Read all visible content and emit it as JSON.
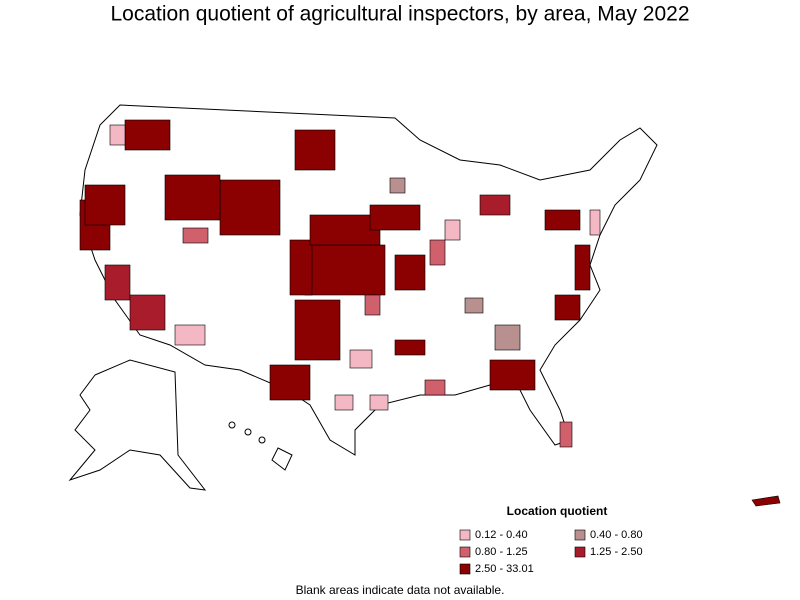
{
  "title": "Location quotient of agricultural inspectors, by area, May 2022",
  "legend": {
    "title": "Location quotient",
    "items": [
      {
        "label": "0.12 - 0.40",
        "color": "#f4b8c4"
      },
      {
        "label": "0.40 - 0.80",
        "color": "#b89090"
      },
      {
        "label": "0.80 - 1.25",
        "color": "#d0606c"
      },
      {
        "label": "1.25 - 2.50",
        "color": "#a81c2c"
      },
      {
        "label": "2.50 - 33.01",
        "color": "#8b0000"
      }
    ]
  },
  "footnote": "Blank areas indicate data not available."
}
